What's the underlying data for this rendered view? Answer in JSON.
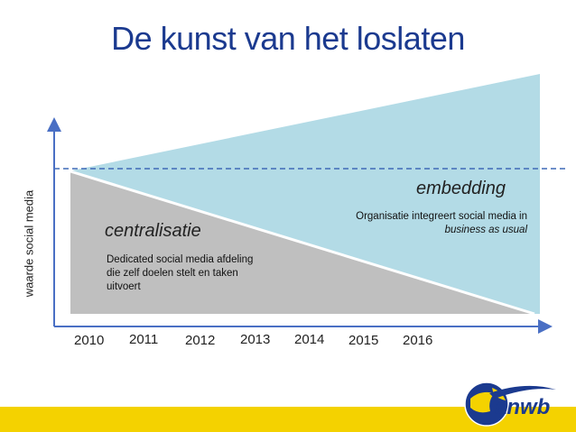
{
  "slide": {
    "title": "De kunst van het loslaten"
  },
  "diagram": {
    "y_axis_label": "waarde social media",
    "years": [
      "2010",
      "2011",
      "2012",
      "2013",
      "2014",
      "2015",
      "2016"
    ],
    "phases": {
      "left": {
        "name": "centralisatie",
        "description": [
          "Dedicated social media afdeling",
          "die zelf doelen stelt en taken",
          "uitvoert"
        ]
      },
      "right": {
        "name": "embedding",
        "description": "Organisatie integreert social media in",
        "description_italic": "business as usual"
      }
    },
    "colors": {
      "embedding_fill": "#b3dbe6",
      "centralisatie_fill": "#bfbfbf",
      "axis": "#4a6fc4",
      "title": "#1b3a8f"
    }
  },
  "footer": {
    "logo_text": "anwb",
    "bar_color": "#f4d200"
  }
}
